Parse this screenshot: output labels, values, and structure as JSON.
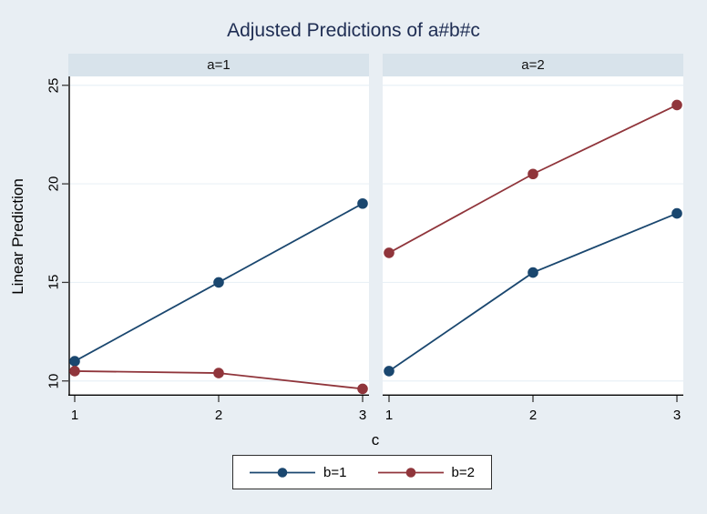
{
  "title": "Adjusted Predictions of a#b#c",
  "colors": {
    "background": "#e8eef3",
    "panel_header_bg": "#d8e3eb",
    "plot_bg": "#ffffff",
    "gridline": "#e9f1f6",
    "axis_line": "#000000",
    "tick_mark": "#3a3a3a",
    "title_text": "#1e2d53",
    "navy": "#1a476f",
    "maroon": "#90353b",
    "legend_border": "#2e2e2e"
  },
  "chart_data": {
    "type": "line",
    "title": "Adjusted Predictions of a#b#c",
    "xlabel": "c",
    "ylabel": "Linear Prediction",
    "x": [
      1,
      2,
      3
    ],
    "xticks": [
      "1",
      "2",
      "3"
    ],
    "yticks": [
      10,
      15,
      20,
      25
    ],
    "ytick_labels": [
      "10",
      "15",
      "20",
      "25"
    ],
    "ylim": [
      9.25,
      25.45
    ],
    "xlim": [
      1,
      3
    ],
    "grid": true,
    "legend_position": "bottom-center",
    "panels": [
      {
        "label": "a=1",
        "series": [
          {
            "name": "b=1",
            "color": "#1a476f",
            "values": [
              11,
              15,
              19
            ]
          },
          {
            "name": "b=2",
            "color": "#90353b",
            "values": [
              10.5,
              10.4,
              9.6
            ]
          }
        ]
      },
      {
        "label": "a=2",
        "series": [
          {
            "name": "b=1",
            "color": "#1a476f",
            "values": [
              10.5,
              15.5,
              18.5
            ]
          },
          {
            "name": "b=2",
            "color": "#90353b",
            "values": [
              16.5,
              20.5,
              24
            ]
          }
        ]
      }
    ],
    "legend": [
      {
        "label": "b=1",
        "color": "#1a476f"
      },
      {
        "label": "b=2",
        "color": "#90353b"
      }
    ]
  }
}
